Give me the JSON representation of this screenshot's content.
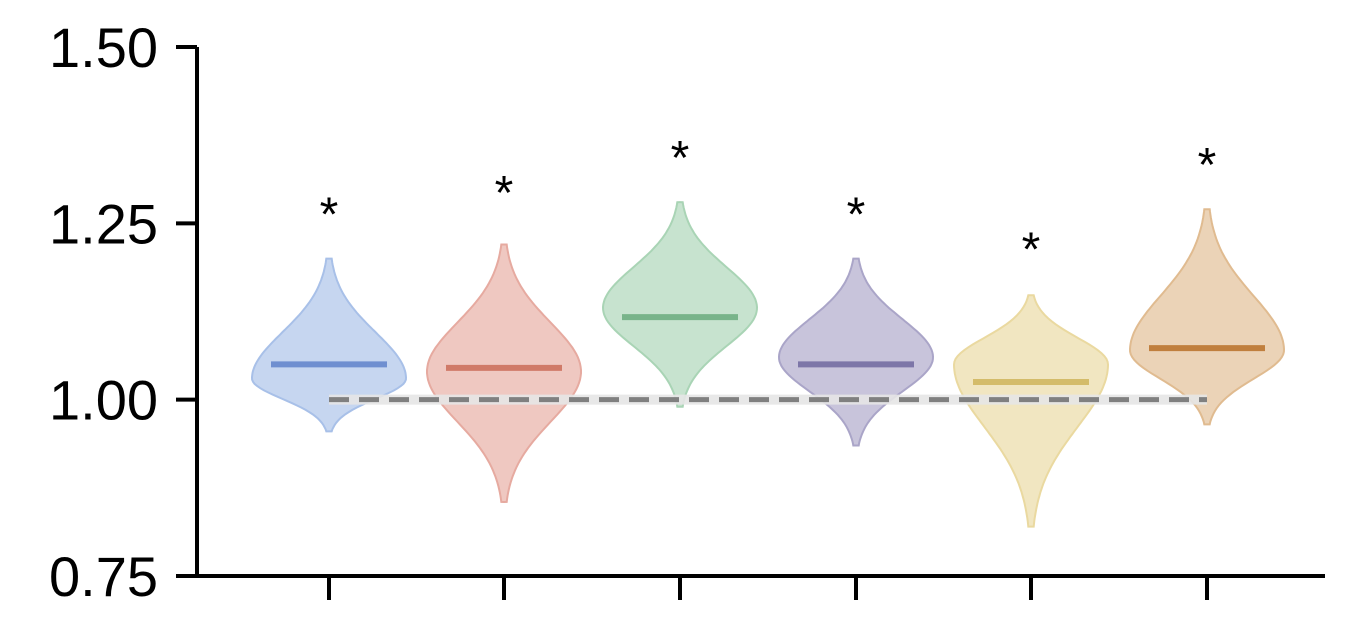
{
  "chart_data": {
    "type": "violin",
    "ylim": [
      0.75,
      1.5
    ],
    "yticks": [
      0.75,
      1.0,
      1.25,
      1.5
    ],
    "ytick_labels": [
      "0.75",
      "1.00",
      "1.25",
      "1.50"
    ],
    "xlabel": "",
    "ylabel": "",
    "reference_line": {
      "y": 1.0,
      "style": "dashed",
      "color": "#808080"
    },
    "groups": [
      {
        "median": 1.05,
        "min": 0.955,
        "max": 1.2,
        "mode": 1.03,
        "color": "#a8c0e8",
        "line_color": "#6f8fd0",
        "significance": "*",
        "sig_y": 1.24
      },
      {
        "median": 1.045,
        "min": 0.855,
        "max": 1.22,
        "mode": 1.04,
        "color": "#e6aaa0",
        "line_color": "#d07a68",
        "significance": "*",
        "sig_y": 1.27
      },
      {
        "median": 1.117,
        "min": 0.99,
        "max": 1.28,
        "mode": 1.13,
        "color": "#a9d4b5",
        "line_color": "#78b48a",
        "significance": "*",
        "sig_y": 1.32
      },
      {
        "median": 1.05,
        "min": 0.935,
        "max": 1.2,
        "mode": 1.06,
        "color": "#aaa5c8",
        "line_color": "#7d76a8",
        "significance": "*",
        "sig_y": 1.24
      },
      {
        "median": 1.025,
        "min": 0.82,
        "max": 1.148,
        "mode": 1.05,
        "color": "#ead9a0",
        "line_color": "#d4bc6a",
        "significance": "*",
        "sig_y": 1.19
      },
      {
        "median": 1.073,
        "min": 0.965,
        "max": 1.27,
        "mode": 1.07,
        "color": "#e0bb90",
        "line_color": "#c07f3e",
        "significance": "*",
        "sig_y": 1.31
      }
    ]
  }
}
